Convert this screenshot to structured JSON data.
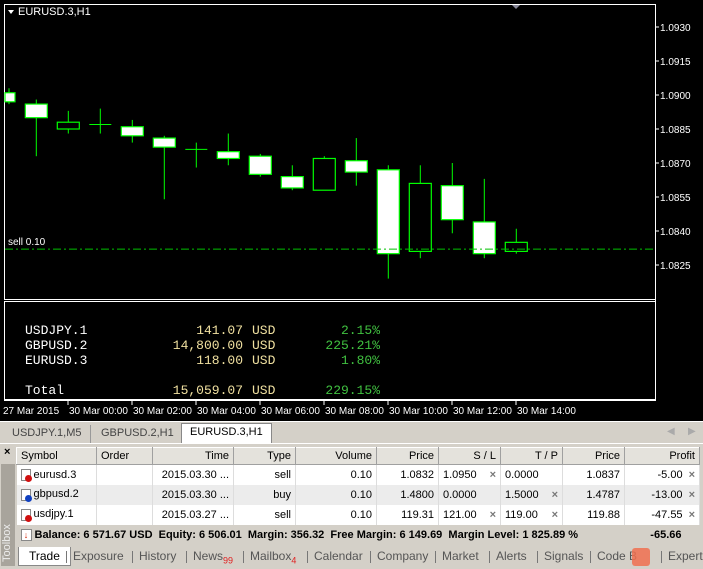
{
  "chart": {
    "title": "EURUSD.3,H1",
    "sell_label": "sell 0.10",
    "sell_price": 1.0832,
    "price_ticks": [
      "1.0930",
      "1.0915",
      "1.0900",
      "1.0885",
      "1.0870",
      "1.0855",
      "1.0840",
      "1.0825"
    ],
    "time_labels": [
      "27 Mar 2015",
      "30 Mar 00:00",
      "30 Mar 02:00",
      "30 Mar 04:00",
      "30 Mar 06:00",
      "30 Mar 08:00",
      "30 Mar 10:00",
      "30 Mar 12:00",
      "30 Mar 14:00"
    ],
    "colors": {
      "background": "#000000",
      "candle_outline": "#00ff00",
      "bear_fill": "#ffffff",
      "bull_fill": "#000000",
      "sell_line": "#00c000"
    },
    "candles": [
      {
        "o": 1.0901,
        "h": 1.0903,
        "l": 1.0896,
        "c": 1.0897
      },
      {
        "o": 1.0896,
        "h": 1.0898,
        "l": 1.0873,
        "c": 1.089
      },
      {
        "o": 1.0885,
        "h": 1.0893,
        "l": 1.0883,
        "c": 1.0888
      },
      {
        "o": 1.0887,
        "h": 1.0894,
        "l": 1.0883,
        "c": 1.0887
      },
      {
        "o": 1.0886,
        "h": 1.0889,
        "l": 1.0879,
        "c": 1.0882
      },
      {
        "o": 1.0881,
        "h": 1.0882,
        "l": 1.0854,
        "c": 1.0877
      },
      {
        "o": 1.0876,
        "h": 1.0879,
        "l": 1.0868,
        "c": 1.0876
      },
      {
        "o": 1.0875,
        "h": 1.0883,
        "l": 1.0869,
        "c": 1.0872
      },
      {
        "o": 1.0873,
        "h": 1.0874,
        "l": 1.0864,
        "c": 1.0865
      },
      {
        "o": 1.0864,
        "h": 1.0869,
        "l": 1.0858,
        "c": 1.0859
      },
      {
        "o": 1.0858,
        "h": 1.0873,
        "l": 1.0858,
        "c": 1.0872
      },
      {
        "o": 1.0871,
        "h": 1.0881,
        "l": 1.086,
        "c": 1.0866
      },
      {
        "o": 1.0867,
        "h": 1.0869,
        "l": 1.0819,
        "c": 1.083
      },
      {
        "o": 1.0831,
        "h": 1.0869,
        "l": 1.0828,
        "c": 1.0861
      },
      {
        "o": 1.086,
        "h": 1.087,
        "l": 1.0839,
        "c": 1.0845
      },
      {
        "o": 1.0844,
        "h": 1.0863,
        "l": 1.0828,
        "c": 1.083
      },
      {
        "o": 1.0831,
        "h": 1.0841,
        "l": 1.083,
        "c": 1.0835
      }
    ]
  },
  "summary": {
    "rows": [
      {
        "name": "USDJPY.1",
        "value": "141.07",
        "cur": "USD",
        "pct": "2.15%"
      },
      {
        "name": "GBPUSD.2",
        "value": "14,800.00",
        "cur": "USD",
        "pct": "225.21%"
      },
      {
        "name": "EURUSD.3",
        "value": "118.00",
        "cur": "USD",
        "pct": "1.80%"
      }
    ],
    "total": {
      "name": "Total",
      "value": "15,059.07",
      "cur": "USD",
      "pct": "229.15%"
    }
  },
  "chart_tabs": [
    "USDJPY.1,M5",
    "GBPUSD.2,H1",
    "EURUSD.3,H1"
  ],
  "toolbox": {
    "label": "Toolbox",
    "close": "×",
    "headers": [
      "Symbol",
      "Order",
      "Time",
      "Type",
      "Volume",
      "Price",
      "S / L",
      "T / P",
      "Price",
      "Profit"
    ],
    "rows": [
      {
        "symbol": "eurusd.3",
        "order": "",
        "time": "2015.03.30 ...",
        "type": "sell",
        "volume": "0.10",
        "price": "1.0832",
        "sl": "1.0950",
        "tp": "0.0000",
        "cur": "1.0837",
        "profit": "-5.00",
        "dot": "#d01010"
      },
      {
        "symbol": "gbpusd.2",
        "order": "",
        "time": "2015.03.30 ...",
        "type": "buy",
        "volume": "0.10",
        "price": "1.4800",
        "sl": "0.0000",
        "tp": "1.5000",
        "cur": "1.4787",
        "profit": "-13.00",
        "dot": "#1040c0"
      },
      {
        "symbol": "usdjpy.1",
        "order": "",
        "time": "2015.03.27 ...",
        "type": "sell",
        "volume": "0.10",
        "price": "119.31",
        "sl": "121.00",
        "tp": "119.00",
        "cur": "119.88",
        "profit": "-47.55",
        "dot": "#d01010"
      }
    ],
    "balance": "Balance: 6 571.67 USD  Equity: 6 506.01  Margin: 356.32  Free Margin: 6 149.69  Margin Level: 1 825.89 %",
    "total_profit": "-65.66",
    "tabs": [
      {
        "label": "Trade"
      },
      {
        "label": "Exposure"
      },
      {
        "label": "History"
      },
      {
        "label": "News",
        "badge": "99"
      },
      {
        "label": "Mailbox",
        "badge": "4"
      },
      {
        "label": "Calendar"
      },
      {
        "label": "Company"
      },
      {
        "label": "Market"
      },
      {
        "label": "Alerts"
      },
      {
        "label": "Signals"
      },
      {
        "label": "Code B"
      },
      {
        "label": "Expert"
      }
    ]
  }
}
